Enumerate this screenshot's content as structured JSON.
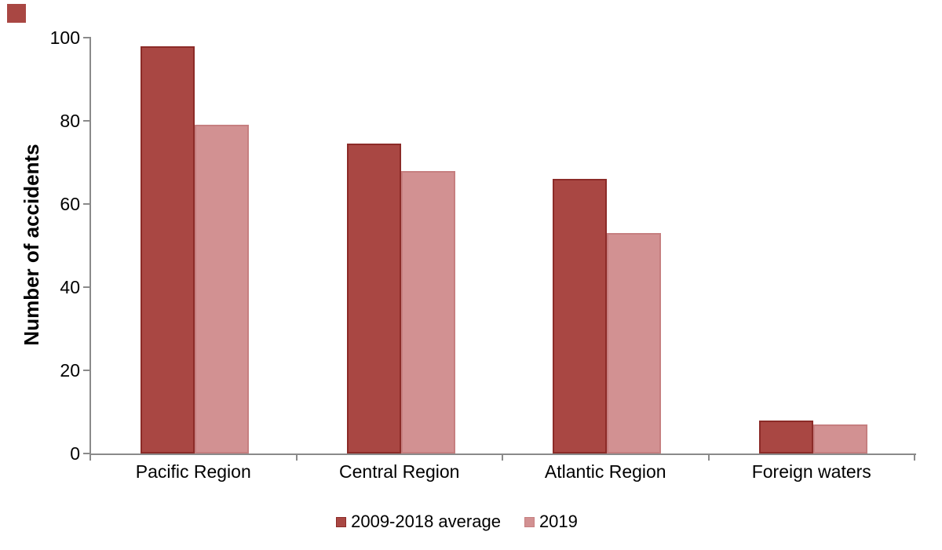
{
  "corner_marker": {
    "color": "#A94743"
  },
  "colors": {
    "axis": "#8A8A8A",
    "text": "#000000",
    "background": "#FFFFFF"
  },
  "chart_data": {
    "type": "bar",
    "title": "",
    "ylabel": "Number of accidents",
    "xlabel": "",
    "categories": [
      "Pacific Region",
      "Central Region",
      "Atlantic Region",
      "Foreign waters"
    ],
    "series": [
      {
        "name": "2009-2018 average",
        "values": [
          98,
          74.5,
          66,
          8
        ],
        "fill": "#A94743",
        "border": "#8C2B28"
      },
      {
        "name": "2019",
        "values": [
          79,
          68,
          53,
          7
        ],
        "fill": "#D29192",
        "border": "#C67F80"
      }
    ],
    "ylim": [
      0,
      100
    ],
    "yticks": [
      0,
      20,
      40,
      60,
      80,
      100
    ],
    "grid": false,
    "legend_position": "bottom"
  }
}
